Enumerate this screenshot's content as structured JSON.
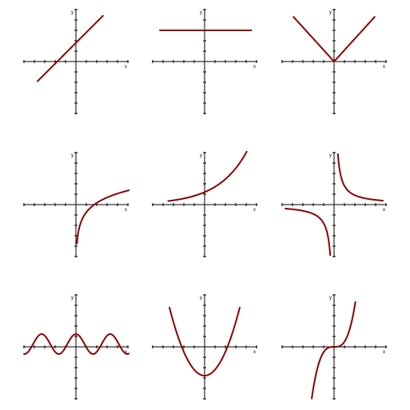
{
  "panels": [
    {
      "x_label": "x",
      "y_label": "y"
    },
    {
      "x_label": "x",
      "y_label": "y"
    },
    {
      "x_label": "x",
      "y_label": "y"
    },
    {
      "x_label": "x",
      "y_label": "y"
    },
    {
      "x_label": "x",
      "y_label": "y"
    },
    {
      "x_label": "x",
      "y_label": "y"
    },
    {
      "x_label": "x",
      "y_label": "y"
    },
    {
      "x_label": "x",
      "y_label": "y"
    },
    {
      "x_label": "x",
      "y_label": "y"
    }
  ]
}
